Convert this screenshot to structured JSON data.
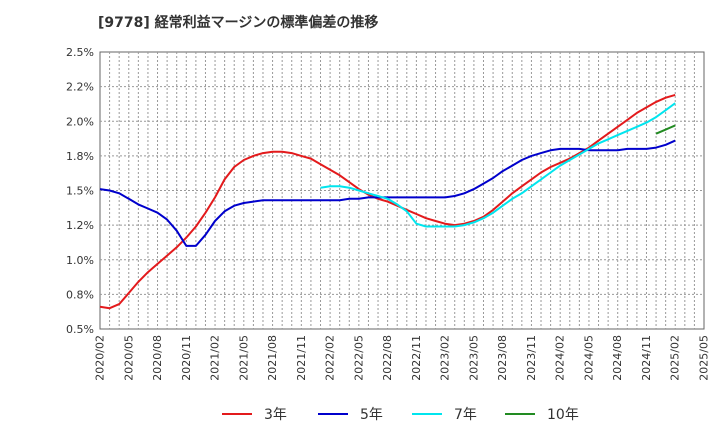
{
  "chart_data": {
    "type": "line",
    "title": "[9778]  経常利益マージンの標準偏差の推移",
    "xlabel": "",
    "ylabel": "",
    "ylim": [
      0.5,
      2.5
    ],
    "y_ticks": [
      0.5,
      0.75,
      1.0,
      1.25,
      1.5,
      1.75,
      2.0,
      2.25,
      2.5
    ],
    "y_tick_labels": [
      "0.5%",
      "0.8%",
      "1.0%",
      "1.2%",
      "1.5%",
      "1.8%",
      "2.0%",
      "2.2%",
      "2.5%"
    ],
    "x_ticks": [
      "2020/02",
      "2020/05",
      "2020/08",
      "2020/11",
      "2021/02",
      "2021/05",
      "2021/08",
      "2021/11",
      "2022/02",
      "2022/05",
      "2022/08",
      "2022/11",
      "2023/02",
      "2023/05",
      "2023/08",
      "2023/11",
      "2024/02",
      "2024/05",
      "2024/08",
      "2024/11",
      "2025/02",
      "2025/05"
    ],
    "grid": true,
    "legend_position": "bottom",
    "series": [
      {
        "name": "3年",
        "color": "#e31a1c",
        "points": [
          [
            "2020/02",
            0.66
          ],
          [
            "2020/03",
            0.65
          ],
          [
            "2020/04",
            0.68
          ],
          [
            "2020/05",
            0.76
          ],
          [
            "2020/06",
            0.84
          ],
          [
            "2020/07",
            0.91
          ],
          [
            "2020/08",
            0.97
          ],
          [
            "2020/09",
            1.03
          ],
          [
            "2020/10",
            1.09
          ],
          [
            "2020/11",
            1.16
          ],
          [
            "2020/12",
            1.24
          ],
          [
            "2021/01",
            1.34
          ],
          [
            "2021/02",
            1.45
          ],
          [
            "2021/03",
            1.58
          ],
          [
            "2021/04",
            1.67
          ],
          [
            "2021/05",
            1.72
          ],
          [
            "2021/06",
            1.75
          ],
          [
            "2021/07",
            1.77
          ],
          [
            "2021/08",
            1.78
          ],
          [
            "2021/09",
            1.78
          ],
          [
            "2021/10",
            1.77
          ],
          [
            "2021/11",
            1.75
          ],
          [
            "2021/12",
            1.73
          ],
          [
            "2022/01",
            1.69
          ],
          [
            "2022/02",
            1.65
          ],
          [
            "2022/03",
            1.61
          ],
          [
            "2022/04",
            1.56
          ],
          [
            "2022/05",
            1.51
          ],
          [
            "2022/06",
            1.47
          ],
          [
            "2022/07",
            1.44
          ],
          [
            "2022/08",
            1.42
          ],
          [
            "2022/09",
            1.39
          ],
          [
            "2022/10",
            1.36
          ],
          [
            "2022/11",
            1.33
          ],
          [
            "2022/12",
            1.3
          ],
          [
            "2023/01",
            1.28
          ],
          [
            "2023/02",
            1.26
          ],
          [
            "2023/03",
            1.25
          ],
          [
            "2023/04",
            1.26
          ],
          [
            "2023/05",
            1.28
          ],
          [
            "2023/06",
            1.31
          ],
          [
            "2023/07",
            1.36
          ],
          [
            "2023/08",
            1.42
          ],
          [
            "2023/09",
            1.48
          ],
          [
            "2023/10",
            1.53
          ],
          [
            "2023/11",
            1.58
          ],
          [
            "2023/12",
            1.63
          ],
          [
            "2024/01",
            1.67
          ],
          [
            "2024/02",
            1.7
          ],
          [
            "2024/03",
            1.73
          ],
          [
            "2024/04",
            1.77
          ],
          [
            "2024/05",
            1.81
          ],
          [
            "2024/06",
            1.86
          ],
          [
            "2024/07",
            1.91
          ],
          [
            "2024/08",
            1.96
          ],
          [
            "2024/09",
            2.01
          ],
          [
            "2024/10",
            2.06
          ],
          [
            "2024/11",
            2.1
          ],
          [
            "2024/12",
            2.14
          ],
          [
            "2025/01",
            2.17
          ],
          [
            "2025/02",
            2.19
          ]
        ]
      },
      {
        "name": "5年",
        "color": "#0000cc",
        "points": [
          [
            "2020/02",
            1.51
          ],
          [
            "2020/03",
            1.5
          ],
          [
            "2020/04",
            1.48
          ],
          [
            "2020/05",
            1.44
          ],
          [
            "2020/06",
            1.4
          ],
          [
            "2020/07",
            1.37
          ],
          [
            "2020/08",
            1.34
          ],
          [
            "2020/09",
            1.29
          ],
          [
            "2020/10",
            1.21
          ],
          [
            "2020/11",
            1.1
          ],
          [
            "2020/12",
            1.1
          ],
          [
            "2021/01",
            1.18
          ],
          [
            "2021/02",
            1.28
          ],
          [
            "2021/03",
            1.35
          ],
          [
            "2021/04",
            1.39
          ],
          [
            "2021/05",
            1.41
          ],
          [
            "2021/06",
            1.42
          ],
          [
            "2021/07",
            1.43
          ],
          [
            "2021/08",
            1.43
          ],
          [
            "2021/09",
            1.43
          ],
          [
            "2021/10",
            1.43
          ],
          [
            "2021/11",
            1.43
          ],
          [
            "2021/12",
            1.43
          ],
          [
            "2022/01",
            1.43
          ],
          [
            "2022/02",
            1.43
          ],
          [
            "2022/03",
            1.43
          ],
          [
            "2022/04",
            1.44
          ],
          [
            "2022/05",
            1.44
          ],
          [
            "2022/06",
            1.45
          ],
          [
            "2022/07",
            1.45
          ],
          [
            "2022/08",
            1.45
          ],
          [
            "2022/09",
            1.45
          ],
          [
            "2022/10",
            1.45
          ],
          [
            "2022/11",
            1.45
          ],
          [
            "2022/12",
            1.45
          ],
          [
            "2023/01",
            1.45
          ],
          [
            "2023/02",
            1.45
          ],
          [
            "2023/03",
            1.46
          ],
          [
            "2023/04",
            1.48
          ],
          [
            "2023/05",
            1.51
          ],
          [
            "2023/06",
            1.55
          ],
          [
            "2023/07",
            1.59
          ],
          [
            "2023/08",
            1.64
          ],
          [
            "2023/09",
            1.68
          ],
          [
            "2023/10",
            1.72
          ],
          [
            "2023/11",
            1.75
          ],
          [
            "2023/12",
            1.77
          ],
          [
            "2024/01",
            1.79
          ],
          [
            "2024/02",
            1.8
          ],
          [
            "2024/03",
            1.8
          ],
          [
            "2024/04",
            1.8
          ],
          [
            "2024/05",
            1.79
          ],
          [
            "2024/06",
            1.79
          ],
          [
            "2024/07",
            1.79
          ],
          [
            "2024/08",
            1.79
          ],
          [
            "2024/09",
            1.8
          ],
          [
            "2024/10",
            1.8
          ],
          [
            "2024/11",
            1.8
          ],
          [
            "2024/12",
            1.81
          ],
          [
            "2025/01",
            1.83
          ],
          [
            "2025/02",
            1.86
          ]
        ]
      },
      {
        "name": "7年",
        "color": "#00e5ee",
        "points": [
          [
            "2022/01",
            1.52
          ],
          [
            "2022/02",
            1.53
          ],
          [
            "2022/03",
            1.53
          ],
          [
            "2022/04",
            1.52
          ],
          [
            "2022/05",
            1.5
          ],
          [
            "2022/06",
            1.48
          ],
          [
            "2022/07",
            1.46
          ],
          [
            "2022/08",
            1.44
          ],
          [
            "2022/09",
            1.4
          ],
          [
            "2022/10",
            1.35
          ],
          [
            "2022/11",
            1.26
          ],
          [
            "2022/12",
            1.24
          ],
          [
            "2023/01",
            1.24
          ],
          [
            "2023/02",
            1.24
          ],
          [
            "2023/03",
            1.24
          ],
          [
            "2023/04",
            1.25
          ],
          [
            "2023/05",
            1.27
          ],
          [
            "2023/06",
            1.3
          ],
          [
            "2023/07",
            1.34
          ],
          [
            "2023/08",
            1.39
          ],
          [
            "2023/09",
            1.44
          ],
          [
            "2023/10",
            1.48
          ],
          [
            "2023/11",
            1.53
          ],
          [
            "2023/12",
            1.58
          ],
          [
            "2024/01",
            1.63
          ],
          [
            "2024/02",
            1.68
          ],
          [
            "2024/03",
            1.72
          ],
          [
            "2024/04",
            1.76
          ],
          [
            "2024/05",
            1.8
          ],
          [
            "2024/06",
            1.84
          ],
          [
            "2024/07",
            1.87
          ],
          [
            "2024/08",
            1.9
          ],
          [
            "2024/09",
            1.93
          ],
          [
            "2024/10",
            1.96
          ],
          [
            "2024/11",
            1.99
          ],
          [
            "2024/12",
            2.03
          ],
          [
            "2025/01",
            2.08
          ],
          [
            "2025/02",
            2.13
          ]
        ]
      },
      {
        "name": "10年",
        "color": "#228b22",
        "points": [
          [
            "2024/12",
            1.91
          ],
          [
            "2025/01",
            1.94
          ],
          [
            "2025/02",
            1.97
          ]
        ]
      }
    ]
  }
}
